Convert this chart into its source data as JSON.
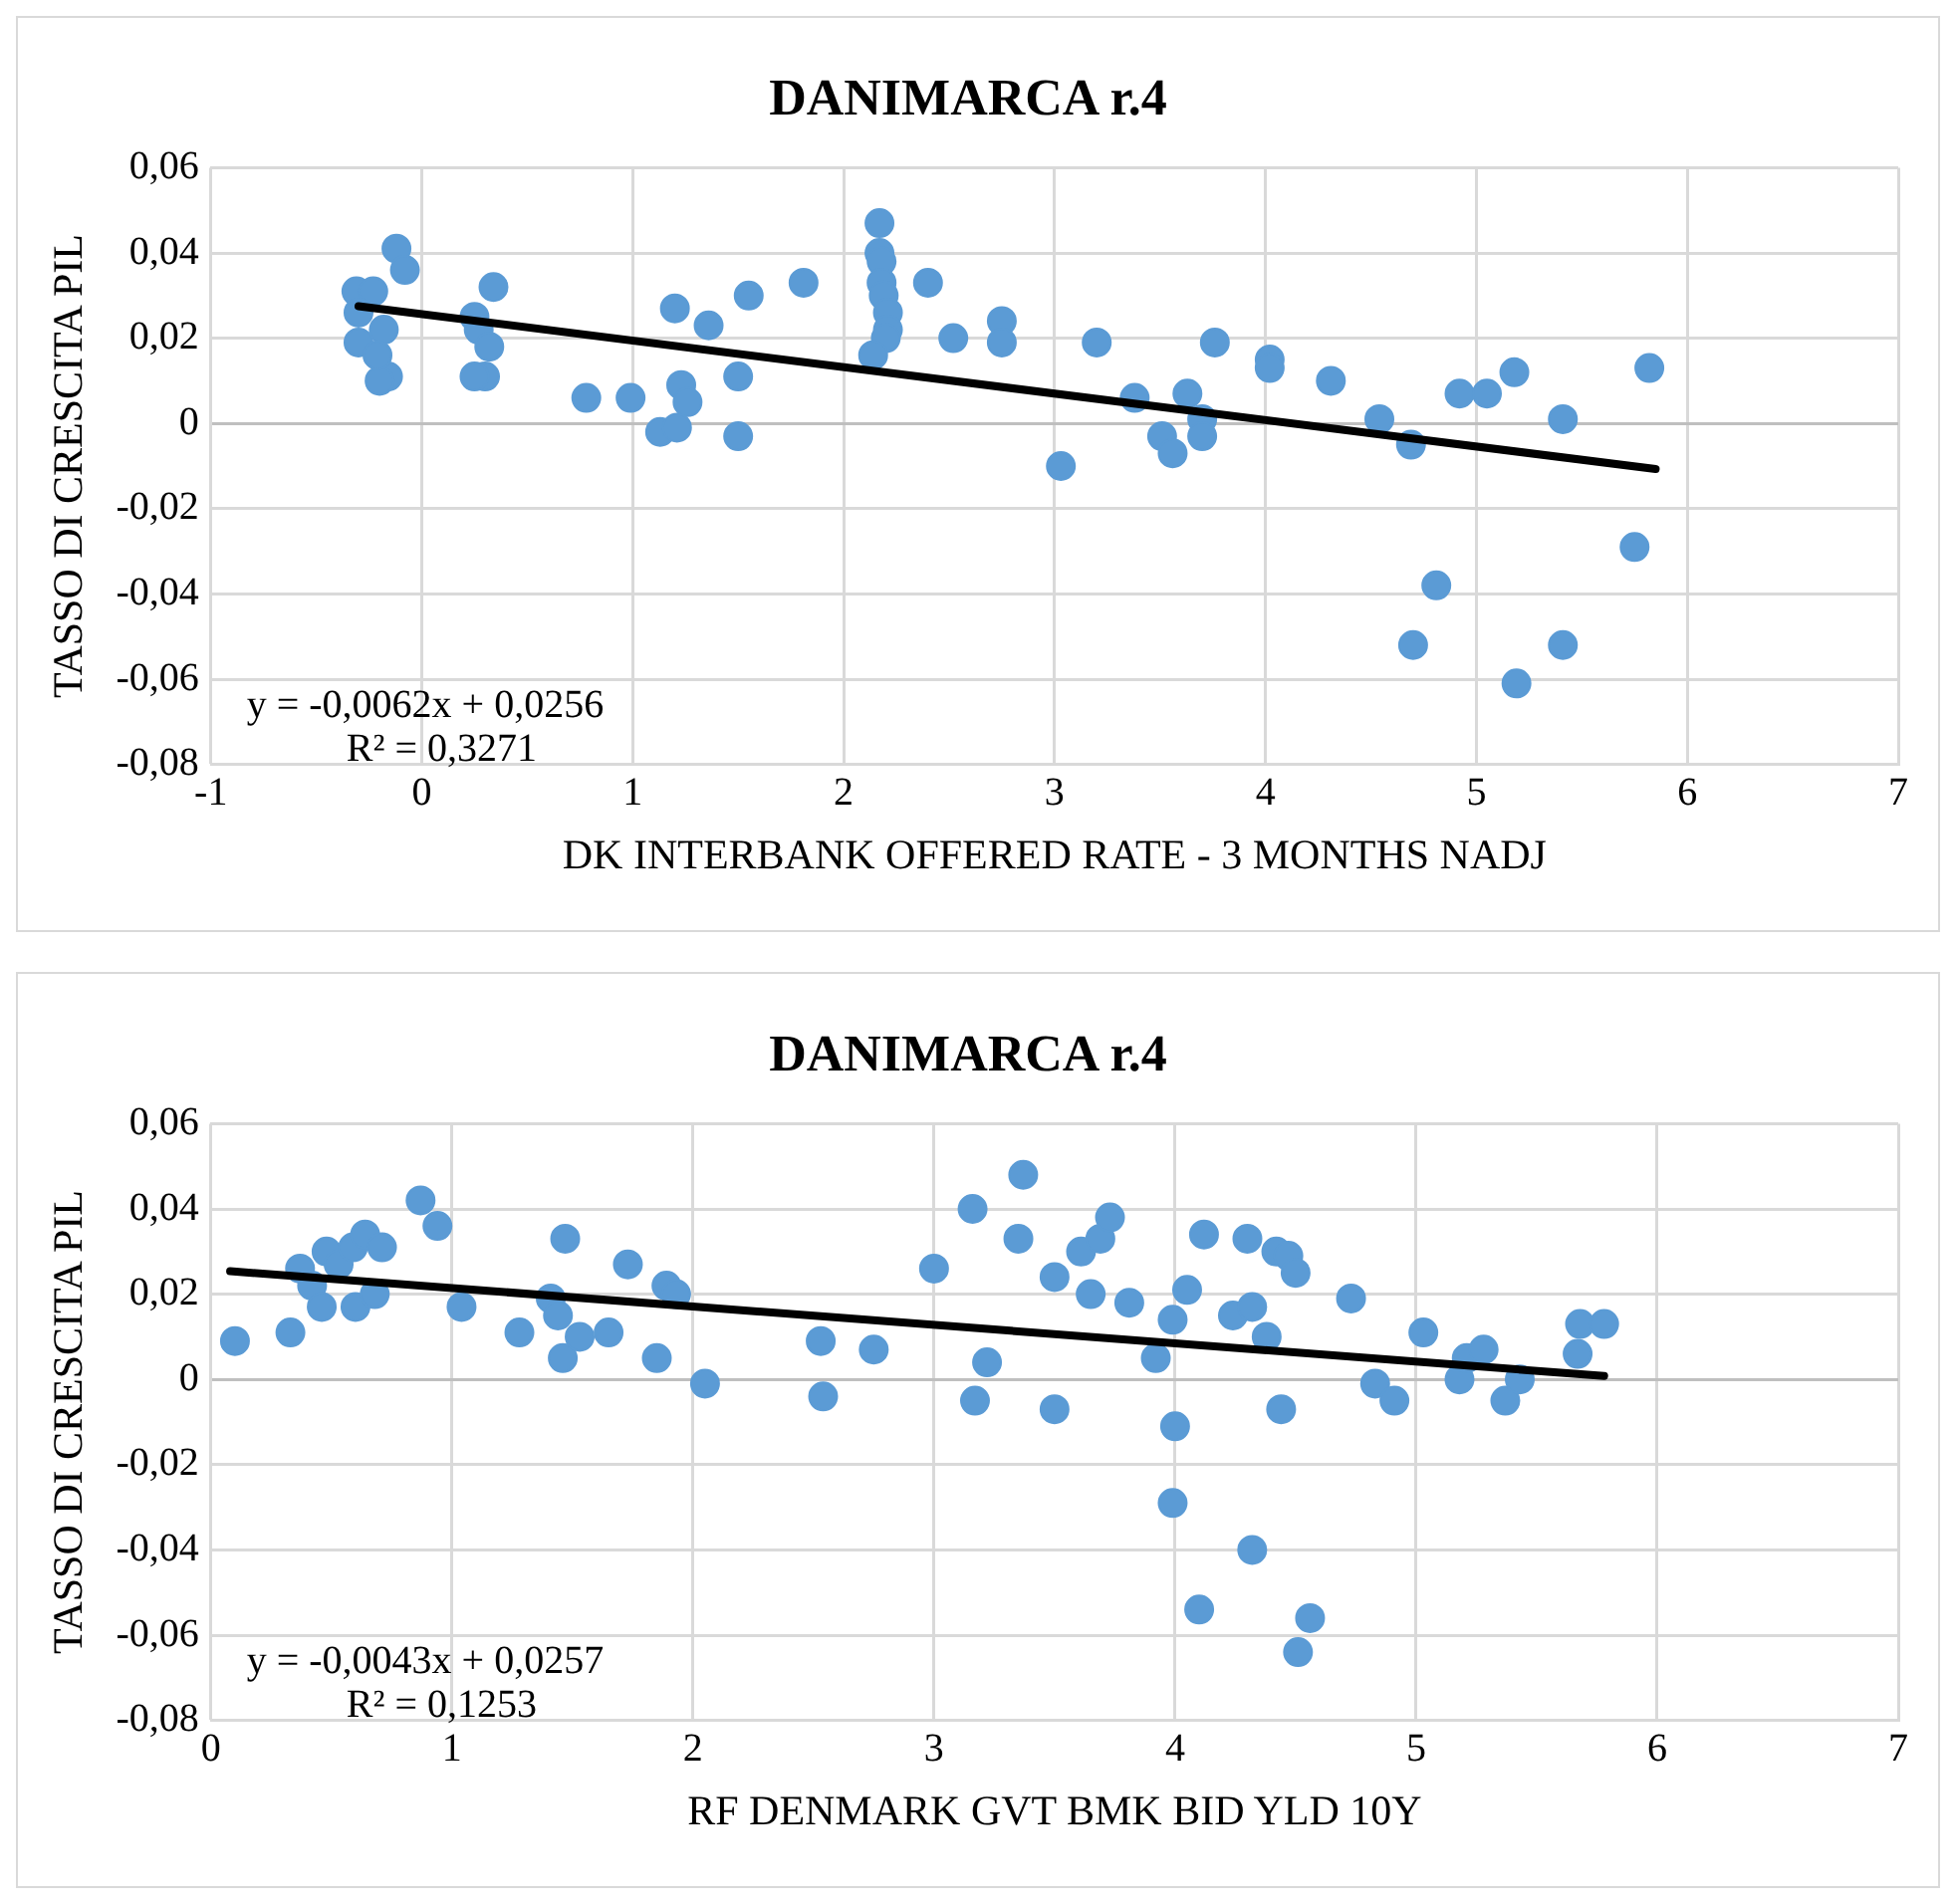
{
  "chart_data": [
    {
      "type": "scatter",
      "title": "DANIMARCA r.4",
      "xlabel": "DK INTERBANK OFFERED RATE - 3 MONTHS NADJ",
      "ylabel": "TASSO DI CRESCITA PIL",
      "annotations": [
        "y = -0,0062x + 0,0256",
        "R² = 0,3271"
      ],
      "xlim": [
        -1,
        7
      ],
      "xticks": [
        -1,
        0,
        1,
        2,
        3,
        4,
        5,
        6,
        7
      ],
      "ylim": [
        -0.08,
        0.06
      ],
      "yticks": [
        {
          "value": -0.08,
          "label": "-0,08"
        },
        {
          "value": -0.06,
          "label": "-0,06"
        },
        {
          "value": -0.04,
          "label": "-0,04"
        },
        {
          "value": -0.02,
          "label": "-0,02"
        },
        0,
        {
          "value": 0.02,
          "label": "0,02"
        },
        {
          "value": 0.04,
          "label": "0,04"
        },
        {
          "value": 0.06,
          "label": "0,06"
        }
      ],
      "grid": true,
      "legend": false,
      "marker": "circle",
      "series": [
        {
          "type": "scatter",
          "color": "#5b9bd5",
          "x": [
            -0.12,
            -0.08,
            -0.31,
            -0.23,
            -0.3,
            -0.3,
            -0.18,
            -0.16,
            -0.2,
            -0.21,
            0.34,
            0.25,
            0.27,
            0.32,
            0.3,
            0.25,
            0.78,
            0.99,
            1.13,
            1.2,
            1.21,
            1.23,
            1.26,
            1.36,
            1.5,
            1.5,
            1.55,
            1.81,
            2.17,
            2.17,
            2.18,
            2.18,
            2.19,
            2.21,
            2.21,
            2.2,
            2.14,
            2.4,
            2.52,
            2.75,
            2.75,
            3.03,
            3.2,
            3.38,
            3.51,
            3.56,
            3.63,
            3.7,
            3.7,
            3.76,
            4.02,
            4.02,
            4.31,
            4.54,
            4.69,
            4.7,
            4.81,
            4.92,
            5.05,
            5.18,
            5.19,
            5.41,
            5.41,
            5.75,
            5.82
          ],
          "values": [
            0.041,
            0.036,
            0.031,
            0.031,
            0.026,
            0.019,
            0.022,
            0.011,
            0.01,
            0.016,
            0.032,
            0.025,
            0.022,
            0.018,
            0.011,
            0.011,
            0.006,
            0.006,
            -0.002,
            0.027,
            -0.001,
            0.009,
            0.005,
            0.023,
            0.011,
            -0.003,
            0.03,
            0.033,
            0.047,
            0.04,
            0.038,
            0.033,
            0.03,
            0.026,
            0.022,
            0.02,
            0.016,
            0.033,
            0.02,
            0.024,
            0.019,
            -0.01,
            0.019,
            0.006,
            -0.003,
            -0.007,
            0.007,
            0.001,
            -0.003,
            0.019,
            0.015,
            0.013,
            0.01,
            0.001,
            -0.005,
            -0.052,
            -0.038,
            0.007,
            0.007,
            0.012,
            -0.061,
            0.001,
            -0.052,
            -0.029,
            0.013
          ]
        },
        {
          "type": "line",
          "color": "#000000",
          "marker": "none",
          "x": [
            -0.3,
            5.85
          ],
          "values": [
            0.0275,
            -0.0107
          ]
        }
      ]
    },
    {
      "type": "scatter",
      "title": "DANIMARCA r.4",
      "xlabel": "RF DENMARK GVT BMK BID YLD 10Y",
      "ylabel": "TASSO DI CRESCITA PIL",
      "annotations": [
        "y = -0,0043x + 0,0257",
        "R² = 0,1253"
      ],
      "xlim": [
        0,
        7
      ],
      "xticks": [
        0,
        1,
        2,
        3,
        4,
        5,
        6,
        7
      ],
      "ylim": [
        -0.08,
        0.06
      ],
      "yticks": [
        {
          "value": -0.08,
          "label": "-0,08"
        },
        {
          "value": -0.06,
          "label": "-0,06"
        },
        {
          "value": -0.04,
          "label": "-0,04"
        },
        {
          "value": -0.02,
          "label": "-0,02"
        },
        0,
        {
          "value": 0.02,
          "label": "0,02"
        },
        {
          "value": 0.04,
          "label": "0,04"
        },
        {
          "value": 0.06,
          "label": "0,06"
        }
      ],
      "grid": true,
      "legend": false,
      "marker": "circle",
      "series": [
        {
          "type": "scatter",
          "color": "#5b9bd5",
          "x": [
            0.1,
            0.33,
            0.37,
            0.42,
            0.46,
            0.48,
            0.53,
            0.59,
            0.64,
            0.6,
            0.68,
            0.71,
            0.87,
            0.94,
            1.04,
            1.28,
            1.41,
            1.44,
            1.47,
            1.46,
            1.53,
            1.65,
            1.73,
            1.85,
            1.89,
            1.93,
            2.05,
            2.53,
            2.54,
            2.75,
            3.0,
            3.16,
            3.17,
            3.22,
            3.35,
            3.37,
            3.5,
            3.5,
            3.61,
            3.65,
            3.69,
            3.73,
            3.81,
            3.92,
            3.99,
            4.05,
            4.0,
            3.99,
            4.12,
            4.1,
            4.24,
            4.32,
            4.3,
            4.32,
            4.38,
            4.42,
            4.47,
            4.5,
            4.44,
            4.51,
            4.56,
            4.73,
            4.83,
            4.91,
            5.03,
            5.18,
            5.21,
            5.28,
            5.37,
            5.43,
            5.67,
            5.68,
            5.78
          ],
          "values": [
            0.009,
            0.011,
            0.026,
            0.022,
            0.017,
            0.03,
            0.027,
            0.031,
            0.034,
            0.017,
            0.02,
            0.031,
            0.042,
            0.036,
            0.017,
            0.011,
            0.019,
            0.015,
            0.033,
            0.005,
            0.01,
            0.011,
            0.027,
            0.005,
            0.022,
            0.02,
            -0.001,
            0.009,
            -0.004,
            0.007,
            0.026,
            0.04,
            -0.005,
            0.004,
            0.033,
            0.048,
            0.024,
            -0.007,
            0.03,
            0.02,
            0.033,
            0.038,
            0.018,
            0.005,
            0.014,
            0.021,
            -0.011,
            -0.029,
            0.034,
            -0.054,
            0.015,
            0.017,
            0.033,
            -0.04,
            0.01,
            0.03,
            0.029,
            0.025,
            -0.007,
            -0.064,
            -0.056,
            0.019,
            -0.001,
            -0.005,
            0.011,
            0.0,
            0.005,
            0.007,
            -0.005,
            0.0,
            0.006,
            0.013,
            0.013
          ]
        },
        {
          "type": "line",
          "color": "#000000",
          "marker": "none",
          "x": [
            0.08,
            5.78
          ],
          "values": [
            0.0254,
            0.0008
          ]
        }
      ]
    }
  ]
}
